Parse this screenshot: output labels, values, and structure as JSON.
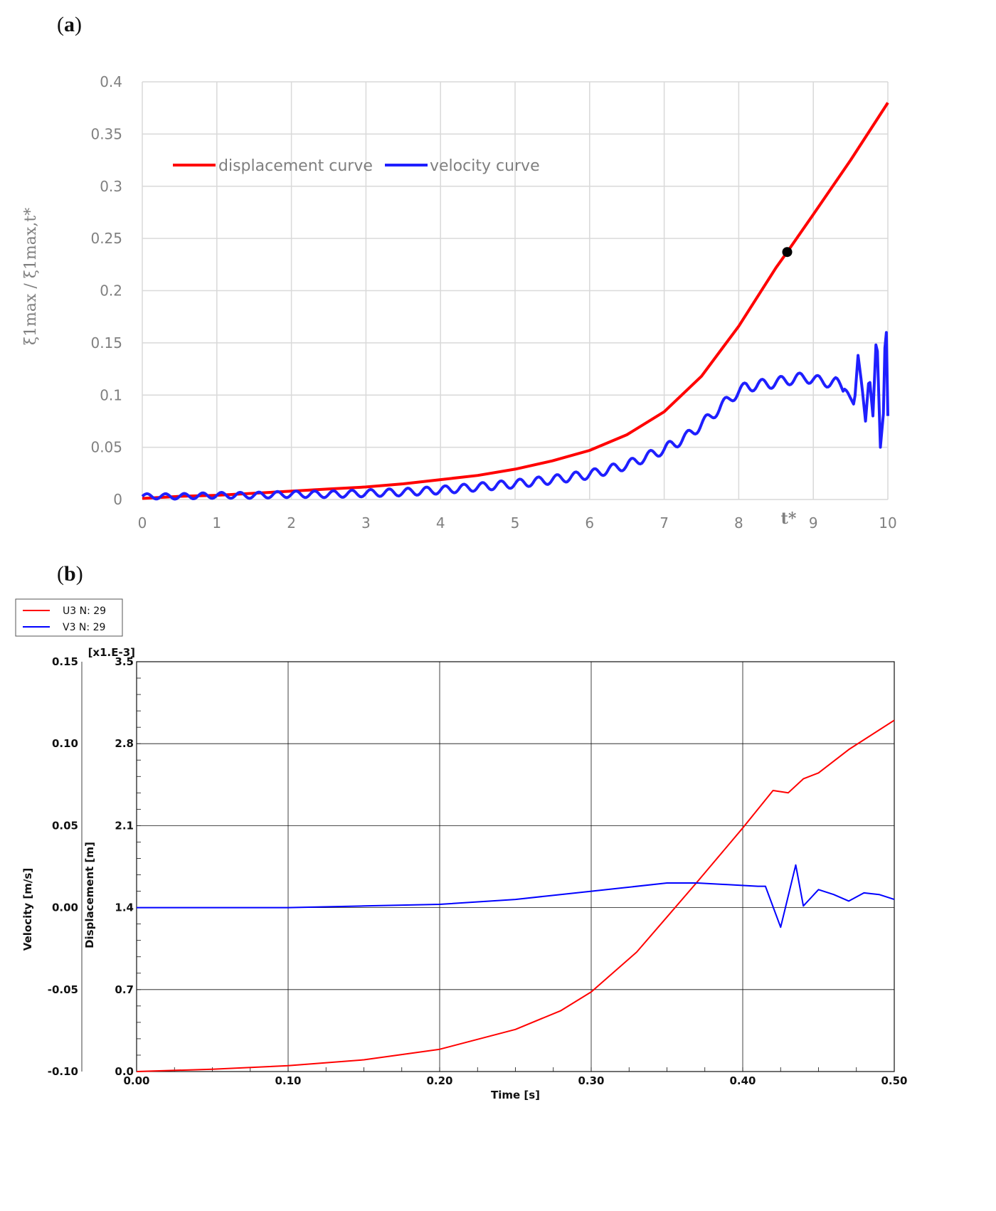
{
  "labels": {
    "panel_a": "a",
    "panel_b": "b"
  },
  "chart_data": [
    {
      "type": "line",
      "panel": "a",
      "xlabel": "",
      "ylabel": "ξ1max / ξ1max,t*",
      "xlim": [
        0,
        10
      ],
      "ylim": [
        0,
        0.4
      ],
      "xticks": [
        "0",
        "1",
        "2",
        "3",
        "4",
        "5",
        "6",
        "7",
        "8",
        "9",
        "10"
      ],
      "yticks": [
        "0",
        "0.05",
        "0.1",
        "0.15",
        "0.2",
        "0.25",
        "0.3",
        "0.35",
        "0.4"
      ],
      "grid": true,
      "legend_position": "top-left",
      "annotation": {
        "text": "t*",
        "x": 8.65,
        "y": 0.237
      },
      "series": [
        {
          "name": "displacement curve",
          "color": "#ff0000",
          "x": [
            0,
            0.5,
            1,
            1.5,
            2,
            2.5,
            3,
            3.5,
            4,
            4.5,
            5,
            5.5,
            6,
            6.5,
            7,
            7.5,
            8,
            8.5,
            8.65,
            9,
            9.5,
            10
          ],
          "y": [
            0.001,
            0.003,
            0.004,
            0.006,
            0.008,
            0.01,
            0.012,
            0.015,
            0.019,
            0.023,
            0.029,
            0.037,
            0.047,
            0.062,
            0.084,
            0.118,
            0.166,
            0.222,
            0.237,
            0.273,
            0.325,
            0.38
          ]
        },
        {
          "name": "velocity curve",
          "color": "#1f1fff",
          "x": [
            0,
            0.5,
            1,
            1.5,
            2,
            2.5,
            3,
            3.5,
            4,
            4.5,
            5,
            5.5,
            6,
            6.5,
            7,
            7.3,
            7.6,
            7.9,
            8.1,
            8.3,
            8.5,
            8.7,
            8.9,
            9.1,
            9.3,
            9.45,
            9.55,
            9.6,
            9.65,
            9.7,
            9.75,
            9.8,
            9.85,
            9.9,
            9.95,
            9.97,
            10
          ],
          "y": [
            0.003,
            0.003,
            0.004,
            0.004,
            0.005,
            0.005,
            0.006,
            0.007,
            0.009,
            0.012,
            0.015,
            0.019,
            0.024,
            0.033,
            0.048,
            0.06,
            0.078,
            0.098,
            0.108,
            0.11,
            0.112,
            0.115,
            0.117,
            0.113,
            0.112,
            0.104,
            0.09,
            0.138,
            0.11,
            0.075,
            0.12,
            0.08,
            0.165,
            0.05,
            0.09,
            0.2,
            0.08
          ]
        }
      ]
    },
    {
      "type": "line",
      "panel": "b",
      "xlabel": "Time [s]",
      "ylabel_left": "Velocity  [m/s]",
      "ylabel_right": "Displacement [m]",
      "displacement_scale_label": "[x1.E-3]",
      "xlim": [
        0,
        0.5
      ],
      "ylim_velocity": [
        -0.1,
        0.15
      ],
      "ylim_displacement": [
        0,
        3.5
      ],
      "xticks": [
        "0.00",
        "0.10",
        "0.20",
        "0.30",
        "0.40",
        "0.50"
      ],
      "velocity_ticks": [
        "-0.10",
        "-0.05",
        "0.00",
        "0.05",
        "0.10",
        "0.15"
      ],
      "displacement_ticks": [
        "0.0",
        "0.7",
        "1.4",
        "2.1",
        "2.8",
        "3.5"
      ],
      "grid": true,
      "legend_position": "top-left (outside)",
      "series": [
        {
          "name": "U3 N: 29",
          "color": "#ff0000",
          "axis": "displacement",
          "x": [
            0,
            0.05,
            0.1,
            0.15,
            0.2,
            0.25,
            0.28,
            0.3,
            0.33,
            0.35,
            0.37,
            0.4,
            0.42,
            0.43,
            0.44,
            0.45,
            0.47,
            0.5
          ],
          "y": [
            0.0,
            0.02,
            0.05,
            0.1,
            0.19,
            0.36,
            0.52,
            0.68,
            1.02,
            1.32,
            1.62,
            2.08,
            2.4,
            2.38,
            2.5,
            2.55,
            2.75,
            3.0
          ]
        },
        {
          "name": "V3 N: 29",
          "color": "#0000ff",
          "axis": "velocity",
          "x": [
            0,
            0.05,
            0.1,
            0.15,
            0.2,
            0.25,
            0.27,
            0.3,
            0.32,
            0.35,
            0.37,
            0.39,
            0.41,
            0.415,
            0.425,
            0.435,
            0.44,
            0.45,
            0.46,
            0.47,
            0.48,
            0.49,
            0.5
          ],
          "y": [
            0.0,
            0.0,
            0.0,
            0.001,
            0.002,
            0.005,
            0.007,
            0.01,
            0.012,
            0.015,
            0.015,
            0.014,
            0.013,
            0.013,
            -0.012,
            0.026,
            0.001,
            0.011,
            0.008,
            0.004,
            0.009,
            0.008,
            0.005
          ]
        }
      ]
    }
  ]
}
